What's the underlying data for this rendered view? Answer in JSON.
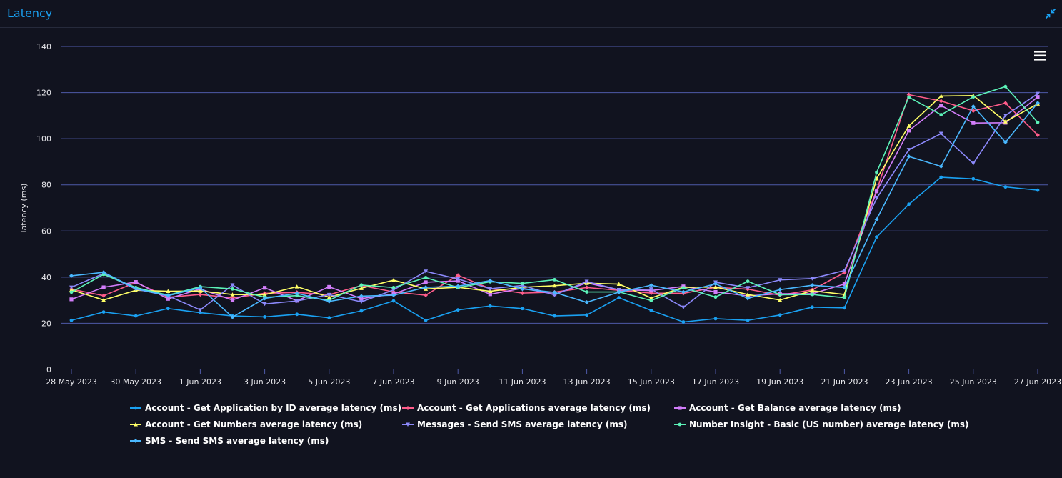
{
  "panel": {
    "title": "Latency"
  },
  "chart_data": {
    "type": "line",
    "title": "",
    "xlabel": "",
    "ylabel": "latency (ms)",
    "ylim": [
      0,
      140
    ],
    "yticks": [
      0,
      20,
      40,
      60,
      80,
      100,
      120,
      140
    ],
    "grid": true,
    "legend_position": "bottom",
    "x": [
      "28 May 2023",
      "29 May 2023",
      "30 May 2023",
      "31 May 2023",
      "1 Jun 2023",
      "2 Jun 2023",
      "3 Jun 2023",
      "4 Jun 2023",
      "5 Jun 2023",
      "6 Jun 2023",
      "7 Jun 2023",
      "8 Jun 2023",
      "9 Jun 2023",
      "10 Jun 2023",
      "11 Jun 2023",
      "12 Jun 2023",
      "13 Jun 2023",
      "14 Jun 2023",
      "15 Jun 2023",
      "16 Jun 2023",
      "17 Jun 2023",
      "18 Jun 2023",
      "19 Jun 2023",
      "20 Jun 2023",
      "21 Jun 2023",
      "22 Jun 2023",
      "23 Jun 2023",
      "24 Jun 2023",
      "25 Jun 2023",
      "26 Jun 2023",
      "27 Jun 2023"
    ],
    "xtick_labels": [
      "28 May 2023",
      "30 May 2023",
      "1 Jun 2023",
      "3 Jun 2023",
      "5 Jun 2023",
      "7 Jun 2023",
      "9 Jun 2023",
      "11 Jun 2023",
      "13 Jun 2023",
      "15 Jun 2023",
      "17 Jun 2023",
      "19 Jun 2023",
      "21 Jun 2023",
      "23 Jun 2023",
      "25 Jun 2023",
      "27 Jun 2023"
    ],
    "series": [
      {
        "name": "Account - Get Application by ID average latency (ms)",
        "color": "#1aa1f2",
        "marker": "circle",
        "values": [
          21.3,
          24.9,
          23.2,
          26.4,
          24.6,
          23.2,
          22.8,
          23.9,
          22.4,
          25.4,
          29.7,
          21.3,
          25.8,
          27.5,
          26.4,
          23.2,
          23.6,
          31.1,
          25.6,
          20.6,
          22.0,
          21.3,
          23.6,
          27.0,
          26.7,
          57.4,
          71.6,
          83.3,
          82.6,
          79.1,
          77.7
        ]
      },
      {
        "name": "Account - Get Applications average latency (ms)",
        "color": "#ff5c8a",
        "marker": "diamond",
        "values": [
          34.8,
          32.0,
          37.7,
          31.3,
          32.5,
          31.0,
          33.0,
          33.4,
          32.4,
          36.4,
          33.6,
          32.2,
          40.8,
          35.0,
          33.1,
          33.5,
          35.5,
          34.3,
          33.1,
          33.0,
          35.6,
          34.8,
          32.2,
          34.5,
          42.0,
          77.5,
          119.1,
          116.3,
          112.1,
          115.4,
          101.6
        ]
      },
      {
        "name": "Account - Get Balance average latency (ms)",
        "color": "#d27dfa",
        "marker": "square",
        "values": [
          30.4,
          35.6,
          37.9,
          30.6,
          34.9,
          30.1,
          35.4,
          29.8,
          35.8,
          30.7,
          32.7,
          37.8,
          38.4,
          32.6,
          35.2,
          32.6,
          37.5,
          34.5,
          34.2,
          36.0,
          33.6,
          31.9,
          32.8,
          32.8,
          37.0,
          77.2,
          103.5,
          114.4,
          106.8,
          106.9,
          118.1
        ]
      },
      {
        "name": "Account - Get Numbers average latency (ms)",
        "color": "#ffff66",
        "marker": "triangle",
        "values": [
          34.5,
          30.1,
          34.3,
          33.9,
          34.0,
          32.5,
          32.4,
          35.9,
          31.3,
          35.2,
          38.7,
          34.9,
          35.6,
          33.9,
          35.6,
          36.3,
          37.4,
          37.0,
          31.0,
          35.6,
          35.7,
          32.5,
          30.1,
          34.1,
          32.5,
          82.7,
          105.5,
          118.5,
          118.7,
          107.4,
          115.1
        ]
      },
      {
        "name": "Messages - Send SMS average latency (ms)",
        "color": "#8c89fb",
        "marker": "triangle-down",
        "values": [
          35.6,
          41.6,
          34.8,
          31.9,
          25.8,
          36.6,
          28.4,
          29.7,
          32.4,
          29.3,
          34.5,
          42.5,
          39.2,
          35.0,
          36.4,
          32.3,
          38.1,
          34.5,
          34.8,
          26.9,
          37.8,
          35.4,
          38.8,
          39.4,
          42.9,
          74.2,
          95.2,
          102.2,
          89.3,
          110.1,
          119.5
        ]
      },
      {
        "name": "Number Insight - Basic (US number) average latency (ms)",
        "color": "#5cf2b8",
        "marker": "circle",
        "values": [
          33.5,
          41.2,
          35.5,
          32.2,
          35.9,
          34.9,
          31.3,
          32.0,
          30.0,
          36.6,
          35.5,
          39.8,
          35.5,
          38.0,
          37.3,
          38.9,
          33.6,
          33.6,
          29.9,
          35.4,
          31.4,
          38.2,
          32.4,
          32.5,
          31.1,
          85.4,
          118.0,
          110.4,
          118.1,
          122.6,
          107.1
        ]
      },
      {
        "name": "SMS - Send SMS average latency (ms)",
        "color": "#4ab8ff",
        "marker": "diamond",
        "values": [
          40.6,
          42.1,
          35.0,
          32.0,
          35.4,
          22.7,
          30.8,
          33.0,
          29.5,
          31.8,
          32.2,
          35.6,
          36.1,
          38.5,
          34.9,
          33.4,
          29.1,
          33.5,
          36.5,
          33.6,
          37.1,
          30.8,
          34.6,
          36.5,
          35.5,
          65.0,
          92.3,
          88.0,
          114.0,
          98.5,
          115.5
        ]
      }
    ]
  }
}
